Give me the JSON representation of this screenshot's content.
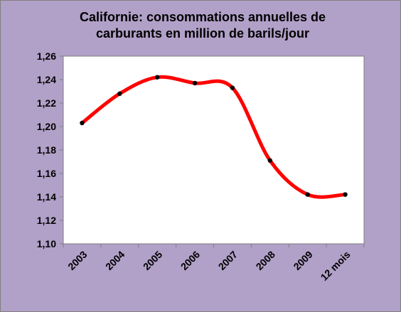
{
  "colors": {
    "background": "#b1a0c7",
    "plot_area": "#ffffff",
    "series_line": "#ff0000",
    "markers": "#000000",
    "gridline": "#808080"
  },
  "chart_data": {
    "type": "line",
    "title_lines": [
      "Californie: consommations annuelles de",
      "carburants en million de barils/jour"
    ],
    "categories": [
      "2003",
      "2004",
      "2005",
      "2006",
      "2007",
      "2008",
      "2009",
      "12 mois"
    ],
    "series": [
      {
        "values": [
          1.203,
          1.228,
          1.242,
          1.237,
          1.233,
          1.171,
          1.142,
          1.142
        ]
      }
    ],
    "ylim": [
      1.1,
      1.26
    ],
    "yticks": [
      "1,10",
      "1,12",
      "1,14",
      "1,16",
      "1,18",
      "1,20",
      "1,22",
      "1,24",
      "1,26"
    ],
    "smooth": true,
    "grid": false,
    "legend": "none"
  }
}
